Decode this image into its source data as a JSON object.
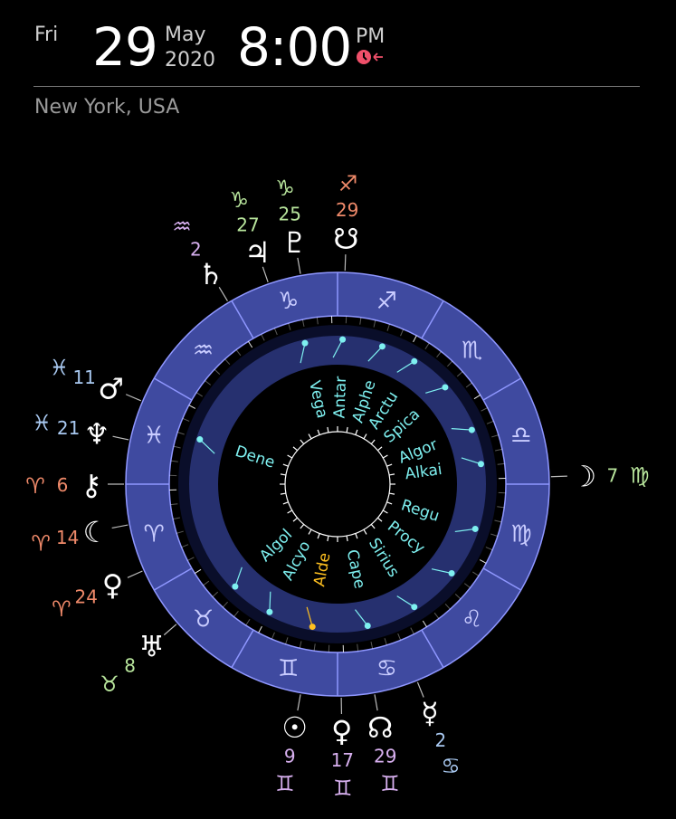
{
  "header": {
    "weekday": "Fri",
    "day": "29",
    "month": "May",
    "year": "2020",
    "time": "8:00",
    "ampm": "PM",
    "location": "New York, USA"
  },
  "colors": {
    "ring": "#3f4aa0",
    "ring_stroke": "#8f97ff",
    "inner_ring": "#26306f",
    "star": "#7ef0f0",
    "star_highlight": "#ffc020",
    "fire": "#f08a6a",
    "earth": "#b8e59c",
    "air": "#d8b0f0",
    "water": "#a8c8f0",
    "clock_icon": "#f0506a"
  },
  "zodiac_ring": [
    {
      "name": "capricorn",
      "glyph": "♑"
    },
    {
      "name": "sagittarius",
      "glyph": "♐"
    },
    {
      "name": "scorpio",
      "glyph": "♏"
    },
    {
      "name": "libra",
      "glyph": "♎"
    },
    {
      "name": "virgo",
      "glyph": "♍"
    },
    {
      "name": "leo",
      "glyph": "♌"
    },
    {
      "name": "cancer",
      "glyph": "♋"
    },
    {
      "name": "gemini",
      "glyph": "♊"
    },
    {
      "name": "taurus",
      "glyph": "♉"
    },
    {
      "name": "aries",
      "glyph": "♈"
    },
    {
      "name": "pisces",
      "glyph": "♓"
    },
    {
      "name": "aquarius",
      "glyph": "♒"
    }
  ],
  "stars": [
    {
      "name": "Dene"
    },
    {
      "name": "Vega"
    },
    {
      "name": "Antar"
    },
    {
      "name": "Alphe"
    },
    {
      "name": "Arctu"
    },
    {
      "name": "Spica"
    },
    {
      "name": "Algor"
    },
    {
      "name": "Alkai"
    },
    {
      "name": "Regu"
    },
    {
      "name": "Procy"
    },
    {
      "name": "Sirius"
    },
    {
      "name": "Cape"
    },
    {
      "name": "Alde"
    },
    {
      "name": "Alcyo"
    },
    {
      "name": "Algol"
    }
  ],
  "planets": [
    {
      "name": "descending-node",
      "glyph": "☋",
      "degree": "29",
      "sign_glyph": "♐",
      "element": "fire"
    },
    {
      "name": "pluto",
      "glyph": "♇",
      "degree": "25",
      "sign_glyph": "♑",
      "element": "earth"
    },
    {
      "name": "jupiter",
      "glyph": "♃",
      "degree": "27",
      "sign_glyph": "♑",
      "element": "earth"
    },
    {
      "name": "saturn",
      "glyph": "♄",
      "degree": "2",
      "sign_glyph": "♒",
      "element": "air"
    },
    {
      "name": "mars",
      "glyph": "♂",
      "degree": "11",
      "sign_glyph": "♓",
      "element": "water"
    },
    {
      "name": "neptune",
      "glyph": "♆",
      "degree": "21",
      "sign_glyph": "♓",
      "element": "water"
    },
    {
      "name": "chiron",
      "glyph": "⚷",
      "degree": "6",
      "sign_glyph": "♈",
      "element": "fire"
    },
    {
      "name": "lilith",
      "glyph": "☾",
      "degree": "14",
      "sign_glyph": "♈",
      "element": "fire"
    },
    {
      "name": "venus-aries",
      "glyph": "♀",
      "degree": "24",
      "sign_glyph": "♈",
      "element": "fire"
    },
    {
      "name": "uranus",
      "glyph": "♅",
      "degree": "8",
      "sign_glyph": "♉",
      "element": "earth"
    },
    {
      "name": "sun",
      "glyph": "☉",
      "degree": "9",
      "sign_glyph": "♊",
      "element": "air"
    },
    {
      "name": "venus",
      "glyph": "♀",
      "degree": "17",
      "sign_glyph": "♊",
      "element": "air"
    },
    {
      "name": "north-node",
      "glyph": "☊",
      "degree": "29",
      "sign_glyph": "♊",
      "element": "air"
    },
    {
      "name": "mercury",
      "glyph": "☿",
      "degree": "2",
      "sign_glyph": "♋",
      "element": "water"
    },
    {
      "name": "moon",
      "glyph": "☽",
      "degree": "7",
      "sign_glyph": "♍",
      "element": "earth"
    }
  ]
}
